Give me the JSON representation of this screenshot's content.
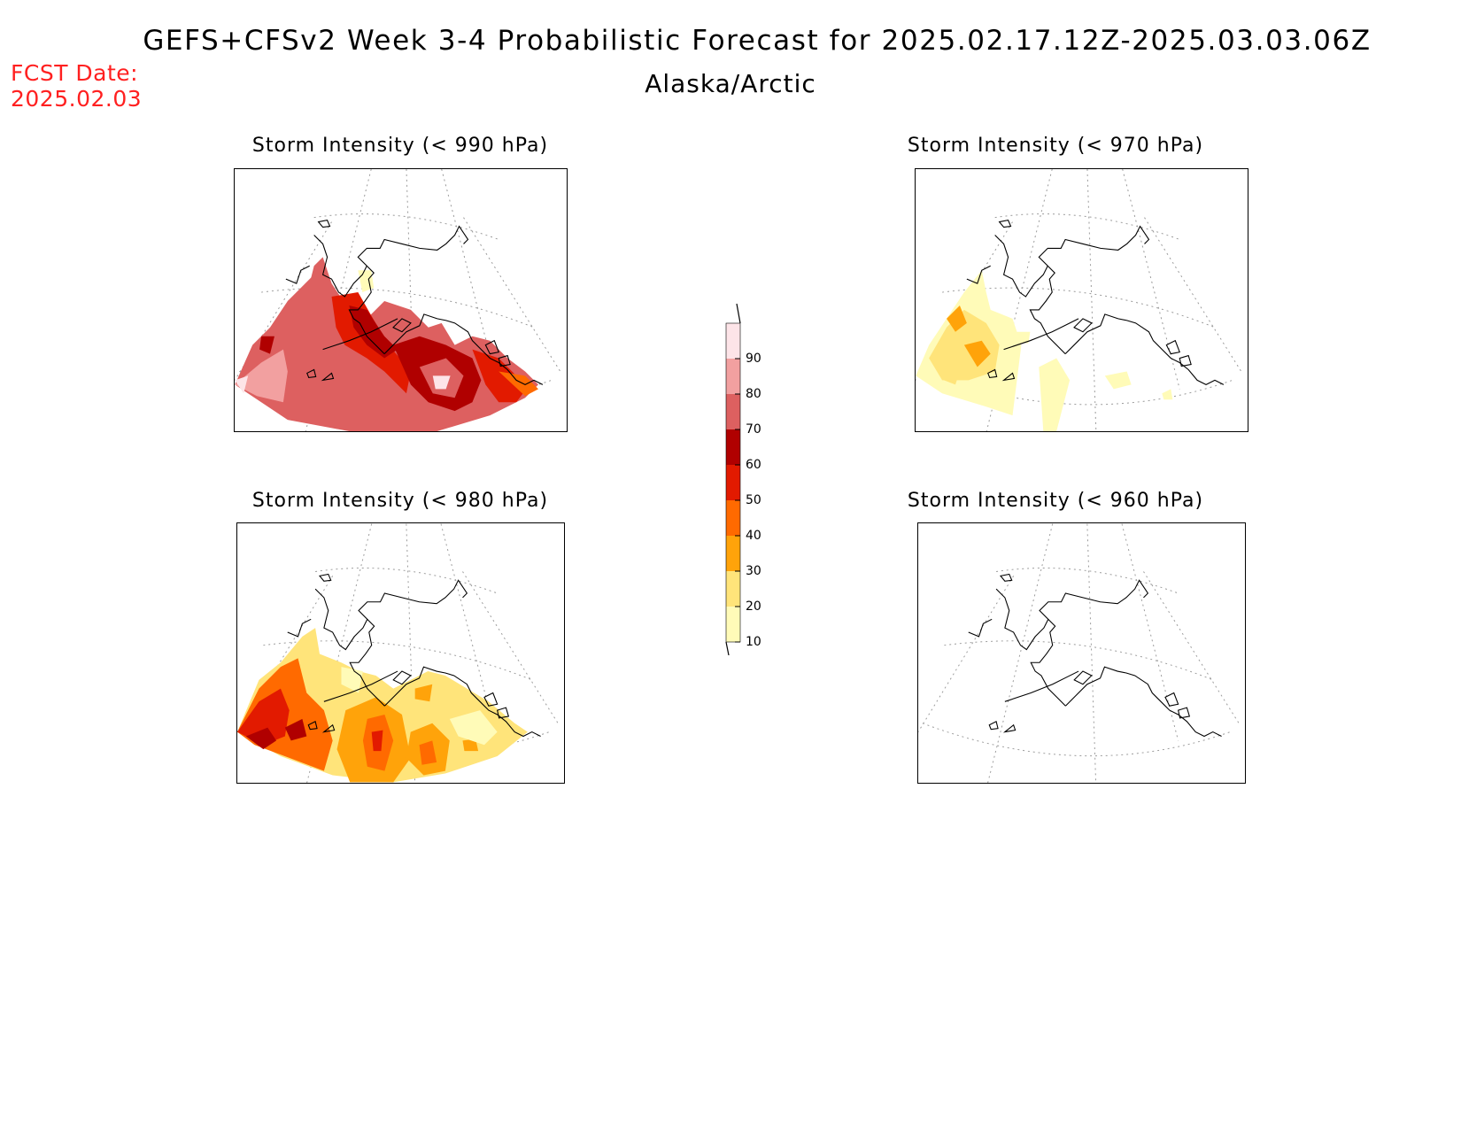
{
  "header": {
    "title": "GEFS+CFSv2 Week 3-4 Probabilistic Forecast for 2025.02.17.12Z-2025.03.03.06Z",
    "region": "Alaska/Arctic",
    "fcst_label": "FCST Date:",
    "fcst_date": "2025.02.03"
  },
  "panels": [
    {
      "id": "p990",
      "title": "Storm Intensity (< 990 hPa)"
    },
    {
      "id": "p970",
      "title": "Storm Intensity (< 970 hPa)"
    },
    {
      "id": "p980",
      "title": "Storm Intensity (< 980 hPa)"
    },
    {
      "id": "p960",
      "title": "Storm Intensity (< 960 hPa)"
    }
  ],
  "colorbar": {
    "levels": [
      10,
      20,
      30,
      40,
      50,
      60,
      70,
      80,
      90
    ],
    "colors": [
      "#fffbb8",
      "#ffe47a",
      "#ffa30a",
      "#ff6a00",
      "#e21a00",
      "#b00000",
      "#dd6060",
      "#f2a0a0",
      "#fde4e8"
    ],
    "labels": [
      "10",
      "20",
      "30",
      "40",
      "50",
      "60",
      "70",
      "80",
      "90"
    ]
  }
}
